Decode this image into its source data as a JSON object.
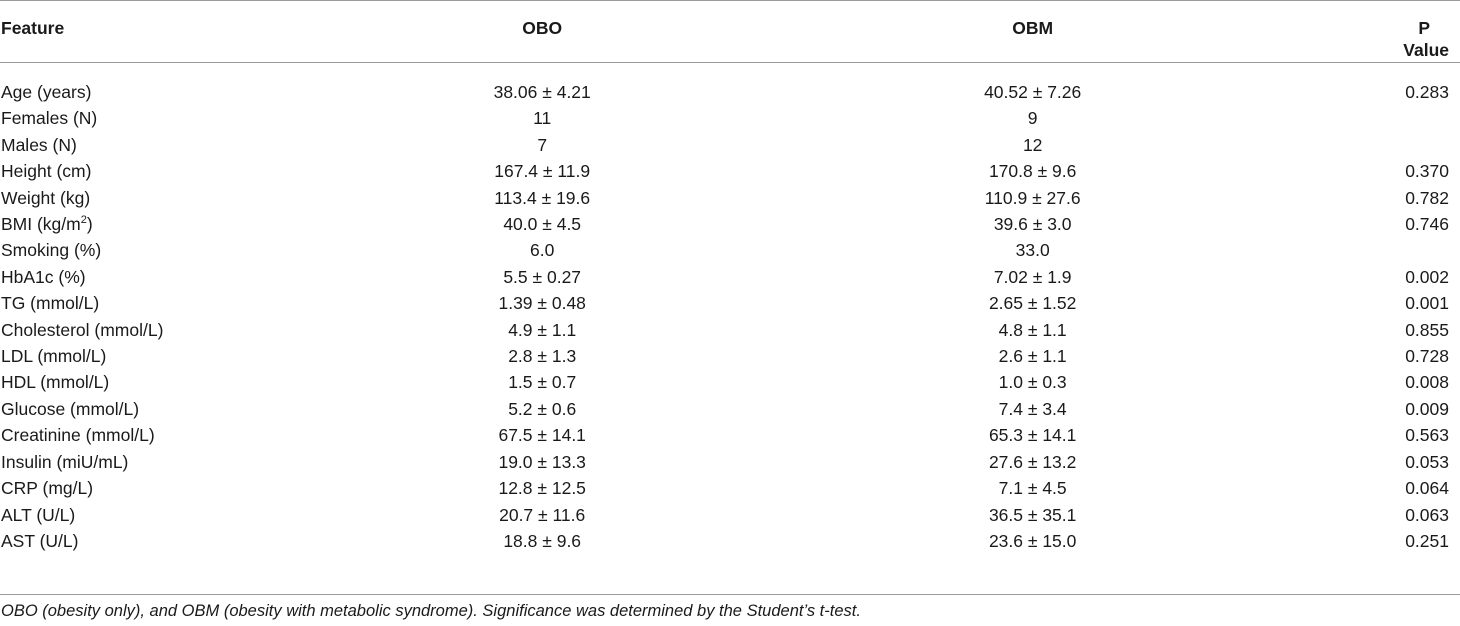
{
  "table": {
    "headers": {
      "feature": "Feature",
      "obo": "OBO",
      "obm": "OBM",
      "p_line1": "P",
      "p_line2": "Value"
    },
    "rows": [
      {
        "feature": "Age (years)",
        "obo": "38.06 ± 4.21",
        "obm": "40.52 ± 7.26",
        "p": "0.283"
      },
      {
        "feature": "Females (N)",
        "obo": "11",
        "obm": "9",
        "p": ""
      },
      {
        "feature": "Males (N)",
        "obo": "7",
        "obm": "12",
        "p": ""
      },
      {
        "feature": "Height (cm)",
        "obo": "167.4 ± 11.9",
        "obm": "170.8 ± 9.6",
        "p": "0.370"
      },
      {
        "feature": "Weight (kg)",
        "obo": "113.4 ± 19.6",
        "obm": "110.9 ± 27.6",
        "p": "0.782"
      },
      {
        "feature": "BMI (kg/m",
        "feature_sup": "2",
        "feature_suffix": ")",
        "obo": "40.0 ± 4.5",
        "obm": "39.6 ± 3.0",
        "p": "0.746"
      },
      {
        "feature": "Smoking (%)",
        "obo": "6.0",
        "obm": "33.0",
        "p": ""
      },
      {
        "feature": "HbA1c (%)",
        "obo": "5.5 ± 0.27",
        "obm": "7.02 ± 1.9",
        "p": "0.002"
      },
      {
        "feature": "TG (mmol/L)",
        "obo": "1.39 ± 0.48",
        "obm": "2.65 ± 1.52",
        "p": "0.001"
      },
      {
        "feature": "Cholesterol (mmol/L)",
        "obo": "4.9 ± 1.1",
        "obm": "4.8 ± 1.1",
        "p": "0.855"
      },
      {
        "feature": "LDL (mmol/L)",
        "obo": "2.8 ± 1.3",
        "obm": "2.6 ± 1.1",
        "p": "0.728"
      },
      {
        "feature": "HDL (mmol/L)",
        "obo": "1.5 ± 0.7",
        "obm": "1.0 ± 0.3",
        "p": "0.008"
      },
      {
        "feature": "Glucose (mmol/L)",
        "obo": "5.2 ± 0.6",
        "obm": "7.4 ± 3.4",
        "p": "0.009"
      },
      {
        "feature": "Creatinine (mmol/L)",
        "obo": "67.5 ± 14.1",
        "obm": "65.3 ± 14.1",
        "p": "0.563"
      },
      {
        "feature": "Insulin (miU/mL)",
        "obo": "19.0 ± 13.3",
        "obm": "27.6 ± 13.2",
        "p": "0.053"
      },
      {
        "feature": "CRP (mg/L)",
        "obo": "12.8 ± 12.5",
        "obm": "7.1 ± 4.5",
        "p": "0.064"
      },
      {
        "feature": "ALT (U/L)",
        "obo": "20.7 ± 11.6",
        "obm": "36.5 ± 35.1",
        "p": "0.063"
      },
      {
        "feature": "AST (U/L)",
        "obo": "18.8 ± 9.6",
        "obm": "23.6 ± 15.0",
        "p": "0.251"
      }
    ]
  },
  "footnote": "OBO (obesity only), and OBM (obesity with metabolic syndrome). Significance was determined by the Student’s t-test."
}
